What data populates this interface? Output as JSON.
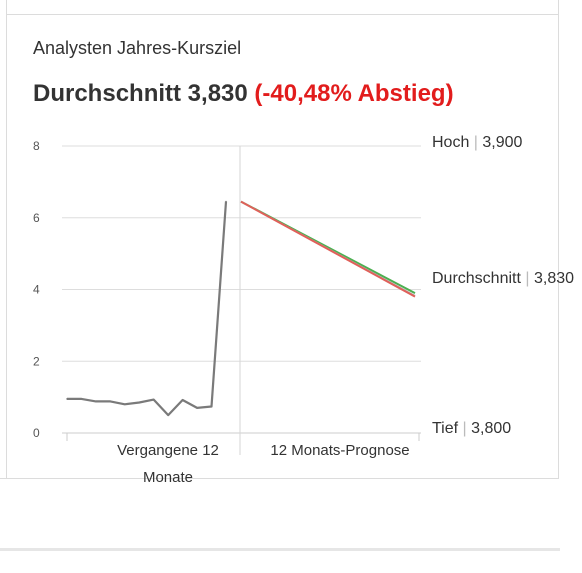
{
  "header": {
    "subtitle": "Analysten Jahres-Kursziel",
    "avg_label": "Durchschnitt 3,830",
    "change_label": "(-40,48% Abstieg)"
  },
  "colors": {
    "history": "#7a7a7a",
    "forecast_high": "#4caf50",
    "forecast_low": "#e0605a",
    "negative": "#e21c1c",
    "grid": "#dddddd"
  },
  "chart_data": {
    "type": "line",
    "ylim": [
      0,
      8
    ],
    "yticks": [
      "0",
      "2",
      "4",
      "6",
      "8"
    ],
    "grid": true,
    "x_categories": [
      "Vergangene 12 Monate",
      "12 Monats-Prognose"
    ],
    "x_category_lines": [
      [
        "Vergangene 12",
        "Monate"
      ],
      [
        "12 Monats-Prognose"
      ]
    ],
    "history": [
      0.95,
      0.95,
      0.88,
      0.88,
      0.8,
      0.85,
      0.93,
      0.5,
      0.92,
      0.7,
      0.74,
      6.45
    ],
    "forecast_start": 6.45,
    "forecast": {
      "high": 3.9,
      "average": 3.83,
      "low": 3.8
    },
    "forecast_labels": [
      {
        "name": "Hoch",
        "value": "3,900"
      },
      {
        "name": "Durchschnitt",
        "value": "3,830"
      },
      {
        "name": "Tief",
        "value": "3,800"
      }
    ]
  }
}
